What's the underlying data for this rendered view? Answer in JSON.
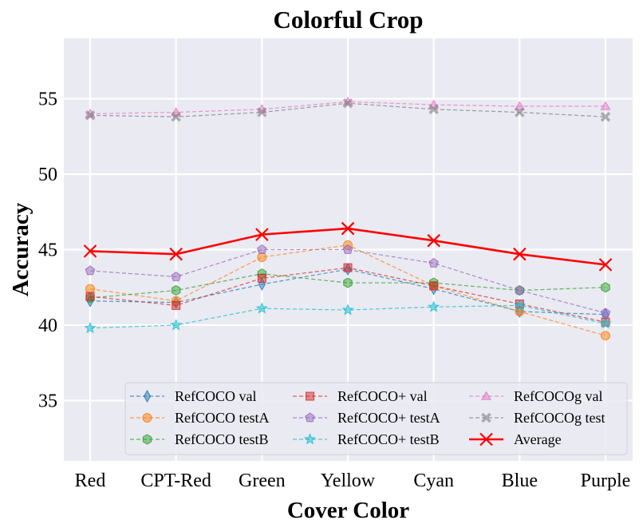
{
  "chart_data": {
    "type": "line",
    "title": "Colorful Crop",
    "xlabel": "Cover Color",
    "ylabel": "Accuracy",
    "categories": [
      "Red",
      "CPT-Red",
      "Green",
      "Yellow",
      "Cyan",
      "Blue",
      "Purple"
    ],
    "ylim": [
      31,
      59
    ],
    "yticks": [
      35,
      40,
      45,
      50,
      55
    ],
    "grid": true,
    "legend_position": "lower-right",
    "series": [
      {
        "name": "RefCOCO val",
        "color": "#1f77b4",
        "marker": "thin-diamond",
        "style": "dashed",
        "values": [
          41.6,
          41.5,
          42.7,
          43.7,
          42.4,
          40.9,
          40.7
        ]
      },
      {
        "name": "RefCOCO testA",
        "color": "#ff7f0e",
        "marker": "circle",
        "style": "dashed",
        "values": [
          42.4,
          41.6,
          44.5,
          45.3,
          42.6,
          40.9,
          39.3
        ]
      },
      {
        "name": "RefCOCO testB",
        "color": "#2ca02c",
        "marker": "hexagon",
        "style": "dashed",
        "values": [
          41.8,
          42.3,
          43.4,
          42.8,
          42.8,
          42.3,
          42.5
        ]
      },
      {
        "name": "RefCOCO+ val",
        "color": "#d62728",
        "marker": "square",
        "style": "dashed",
        "values": [
          41.9,
          41.3,
          43.1,
          43.8,
          42.6,
          41.4,
          40.2
        ]
      },
      {
        "name": "RefCOCO+ testA",
        "color": "#9467bd",
        "marker": "pentagon",
        "style": "dashed",
        "values": [
          43.6,
          43.2,
          45.0,
          45.0,
          44.1,
          42.3,
          40.8
        ]
      },
      {
        "name": "RefCOCO+ testB",
        "color": "#17becf",
        "marker": "star",
        "style": "dashed",
        "values": [
          39.8,
          40.0,
          41.1,
          41.0,
          41.2,
          41.3,
          40.1
        ]
      },
      {
        "name": "RefCOCOg val",
        "color": "#e377c2",
        "marker": "triangle-up",
        "style": "dashed",
        "values": [
          54.0,
          54.1,
          54.3,
          54.8,
          54.6,
          54.5,
          54.5
        ]
      },
      {
        "name": "RefCOCOg test",
        "color": "#7f7f7f",
        "marker": "x",
        "style": "dashed",
        "values": [
          53.9,
          53.8,
          54.1,
          54.7,
          54.3,
          54.1,
          53.8
        ]
      },
      {
        "name": "Average",
        "color": "#ff0000",
        "marker": "x-large",
        "style": "solid",
        "values": [
          44.9,
          44.7,
          46.0,
          46.4,
          45.6,
          44.7,
          44.0
        ]
      }
    ]
  }
}
